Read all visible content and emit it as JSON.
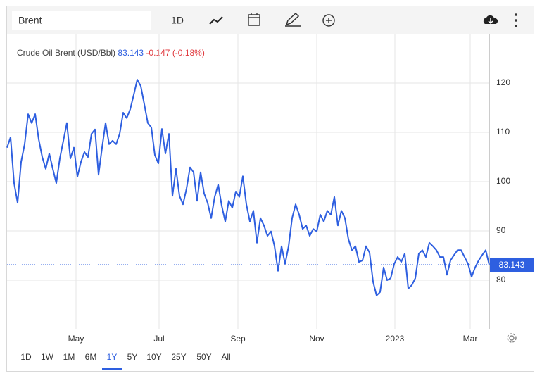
{
  "toolbar": {
    "search": "Brent",
    "interval": "1D"
  },
  "ranges": [
    "1D",
    "1W",
    "1M",
    "6M",
    "1Y",
    "5Y",
    "10Y",
    "25Y",
    "50Y",
    "All"
  ],
  "selected_range": "1Y",
  "chart_data": {
    "type": "line",
    "title": "Crude Oil Brent (USD/Bbl)",
    "last": {
      "price": 83.143,
      "change": "-0.147",
      "change_pct": "(-0.18%)"
    },
    "series": [
      {
        "color": "#2e5fe0",
        "values": [
          106.9,
          109,
          99.7,
          95.7,
          104,
          107.6,
          113.7,
          111.9,
          113.7,
          108.6,
          105,
          102.6,
          105.7,
          102.6,
          99.7,
          104.7,
          108.3,
          111.9,
          104.7,
          106.9,
          101,
          104,
          106,
          105,
          109.7,
          110.6,
          101.4,
          106.9,
          111.9,
          107.6,
          108.3,
          107.6,
          109.7,
          114,
          112.9,
          114.7,
          117.6,
          120.7,
          119.4,
          115.7,
          111.9,
          111,
          105.4,
          103.7,
          110.7,
          105.7,
          109.7,
          97.1,
          102.6,
          97.1,
          95.4,
          98.6,
          102.9,
          101.9,
          96.1,
          101.9,
          97.6,
          95.7,
          92.6,
          96.9,
          99.4,
          95.1,
          91.9,
          96.1,
          94.7,
          98,
          96.9,
          101.1,
          95.4,
          91.9,
          94.1,
          87.6,
          92.6,
          91.1,
          89,
          89.9,
          86.9,
          81.9,
          86.9,
          83.3,
          86.9,
          92.6,
          95.4,
          93.3,
          90.4,
          91.1,
          89,
          90.4,
          89.9,
          93.3,
          91.9,
          94.1,
          93.3,
          96.9,
          91.1,
          94.1,
          92.6,
          88.3,
          86.1,
          86.9,
          83.7,
          84,
          86.9,
          85.6,
          79.7,
          76.9,
          77.6,
          82.6,
          80,
          80.4,
          83.3,
          84.7,
          83.7,
          85.4,
          78.3,
          79,
          80.4,
          85.4,
          86.1,
          84.7,
          87.6,
          86.9,
          86.1,
          84.7,
          84.7,
          81.1,
          84,
          85.1,
          86.1,
          86.1,
          84.7,
          83.3,
          80.7,
          82.6,
          84,
          85.1,
          86.1,
          83.143
        ]
      }
    ],
    "xlim": [
      0,
      134
    ],
    "xticks": [
      {
        "value": 19.6,
        "label": "May"
      },
      {
        "value": 43.2,
        "label": "Jul"
      },
      {
        "value": 65.6,
        "label": "Sep"
      },
      {
        "value": 88,
        "label": "Nov"
      },
      {
        "value": 110.2,
        "label": "2023"
      },
      {
        "value": 131.6,
        "label": "Mar"
      }
    ],
    "ylim": [
      70,
      130
    ],
    "yticks": [
      80,
      90,
      100,
      110,
      120
    ],
    "grid": true
  }
}
